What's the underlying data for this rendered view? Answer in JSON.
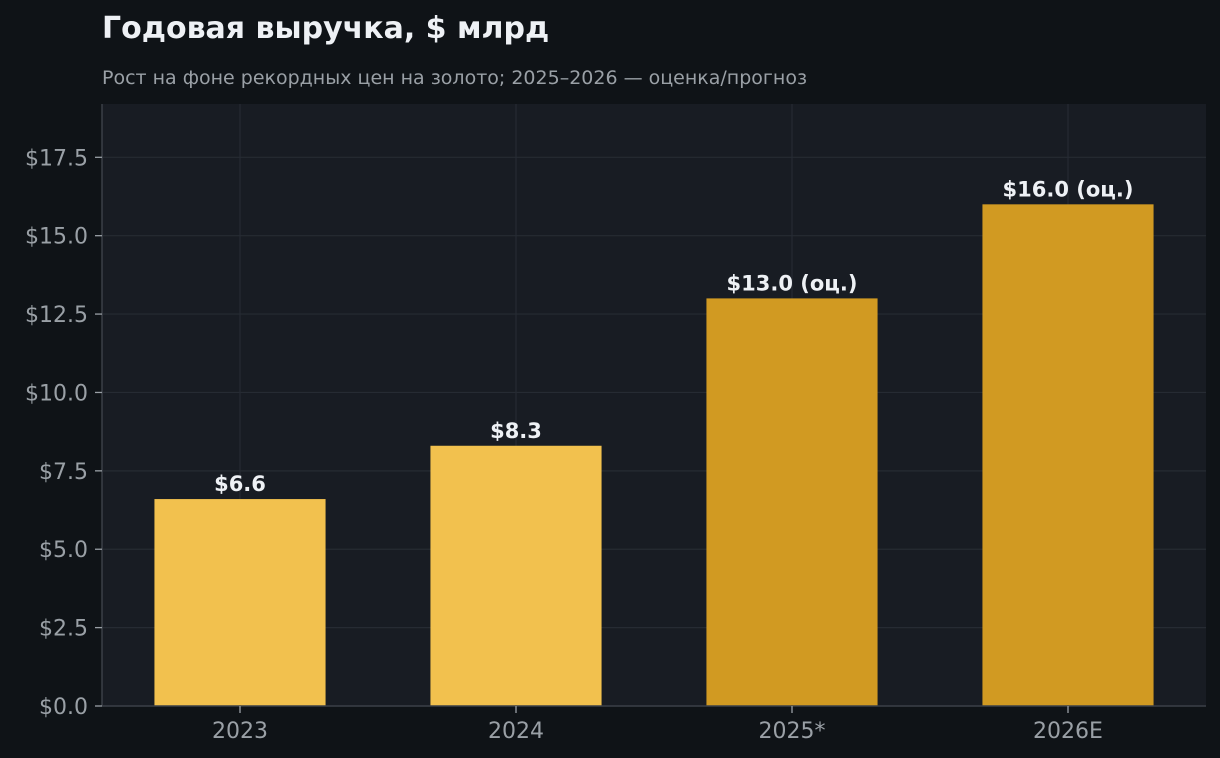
{
  "chart_data": {
    "type": "bar",
    "title": "Годовая выручка, $ млрд",
    "subtitle": "Рост на фоне рекордных цен на золото; 2025–2026 — оценка/прогноз",
    "xlabel": "",
    "ylabel": "",
    "categories": [
      "2023",
      "2024",
      "2025*",
      "2026E"
    ],
    "values": [
      6.6,
      8.3,
      13.0,
      16.0
    ],
    "data_labels": [
      "$6.6",
      "$8.3",
      "$13.0 (оц.)",
      "$16.0 (оц.)"
    ],
    "ylim": [
      0,
      19.2
    ],
    "yticks": [
      0,
      2.5,
      5,
      7.5,
      10,
      12.5,
      15,
      17.5
    ],
    "ytick_labels": [
      "$0.0",
      "$2.5",
      "$5.0",
      "$7.5",
      "$10.0",
      "$12.5",
      "$15.0",
      "$17.5"
    ],
    "grid": true,
    "colors": {
      "actual": "#f2c14e",
      "estimate": "#d19a22",
      "background": "#0f1317",
      "plot_background": "#181c23",
      "grid": "#262b33",
      "axis": "#3a3f47",
      "tick_text": "#9aa0a6",
      "title_text": "#eef1f5",
      "subtitle_text": "#9aa0a6",
      "label_text": "#eef1f5"
    },
    "bar_styles": [
      "actual",
      "actual",
      "estimate",
      "estimate"
    ]
  }
}
